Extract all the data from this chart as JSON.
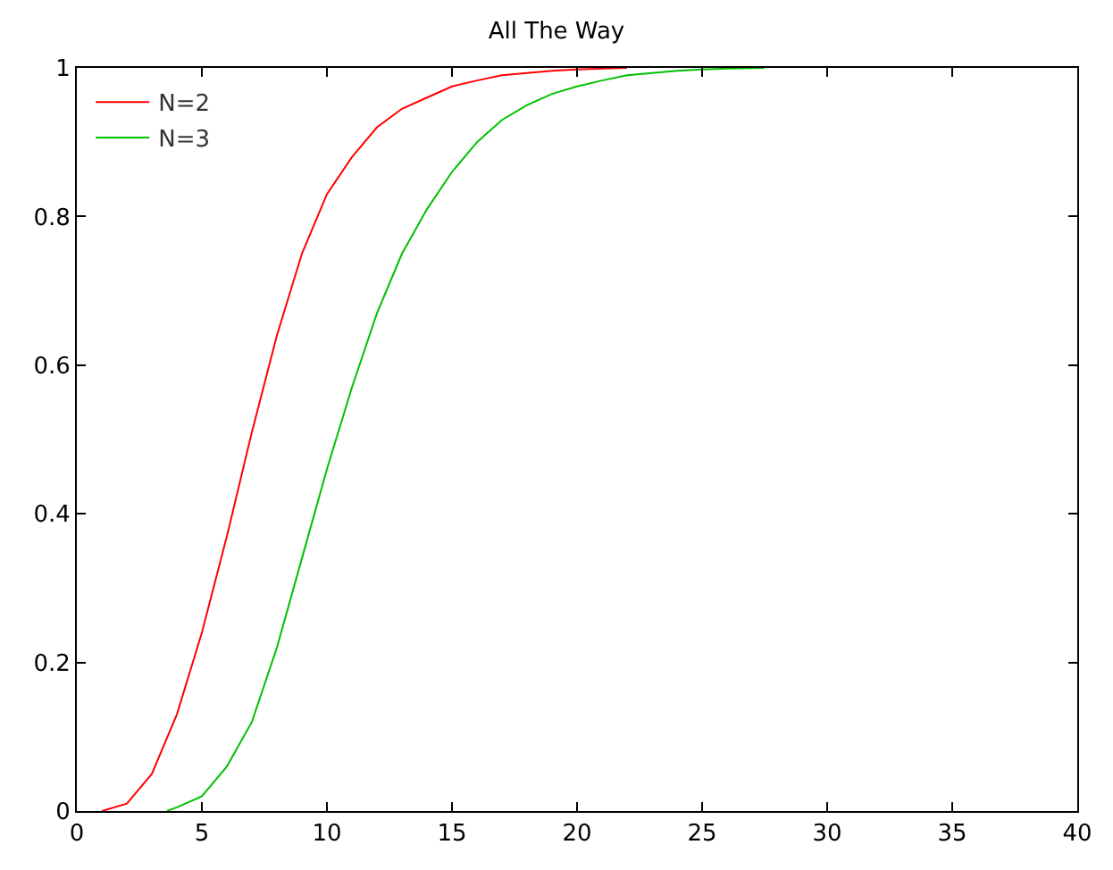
{
  "chart_data": {
    "type": "line",
    "title": "All The Way",
    "xlim": [
      0,
      40
    ],
    "ylim": [
      0,
      1
    ],
    "xticks": [
      0,
      5,
      10,
      15,
      20,
      25,
      30,
      35,
      40
    ],
    "yticks": [
      0,
      0.2,
      0.4,
      0.6,
      0.8,
      1
    ],
    "legend": "top left",
    "marker": "none",
    "line_style": "solid",
    "series": [
      {
        "name": "N=2",
        "color": "#ff0000",
        "x": [
          1,
          2,
          3,
          4,
          5,
          6,
          7,
          8,
          9,
          10,
          11,
          12,
          13,
          14,
          15,
          16,
          17,
          18,
          19,
          20,
          21,
          22
        ],
        "values": [
          0,
          0.01,
          0.05,
          0.13,
          0.24,
          0.37,
          0.51,
          0.64,
          0.75,
          0.83,
          0.88,
          0.92,
          0.945,
          0.96,
          0.975,
          0.983,
          0.99,
          0.993,
          0.996,
          0.998,
          0.999,
          1
        ]
      },
      {
        "name": "N=3",
        "color": "#00c000",
        "x": [
          3.6,
          4,
          5,
          6,
          7,
          8,
          9,
          10,
          11,
          12,
          13,
          14,
          15,
          16,
          17,
          18,
          19,
          20,
          21,
          22,
          23,
          24,
          25,
          26,
          27.5
        ],
        "values": [
          0,
          0.005,
          0.02,
          0.06,
          0.12,
          0.22,
          0.34,
          0.46,
          0.57,
          0.67,
          0.75,
          0.81,
          0.86,
          0.9,
          0.93,
          0.95,
          0.965,
          0.975,
          0.983,
          0.99,
          0.993,
          0.996,
          0.998,
          0.999,
          1
        ]
      }
    ]
  }
}
